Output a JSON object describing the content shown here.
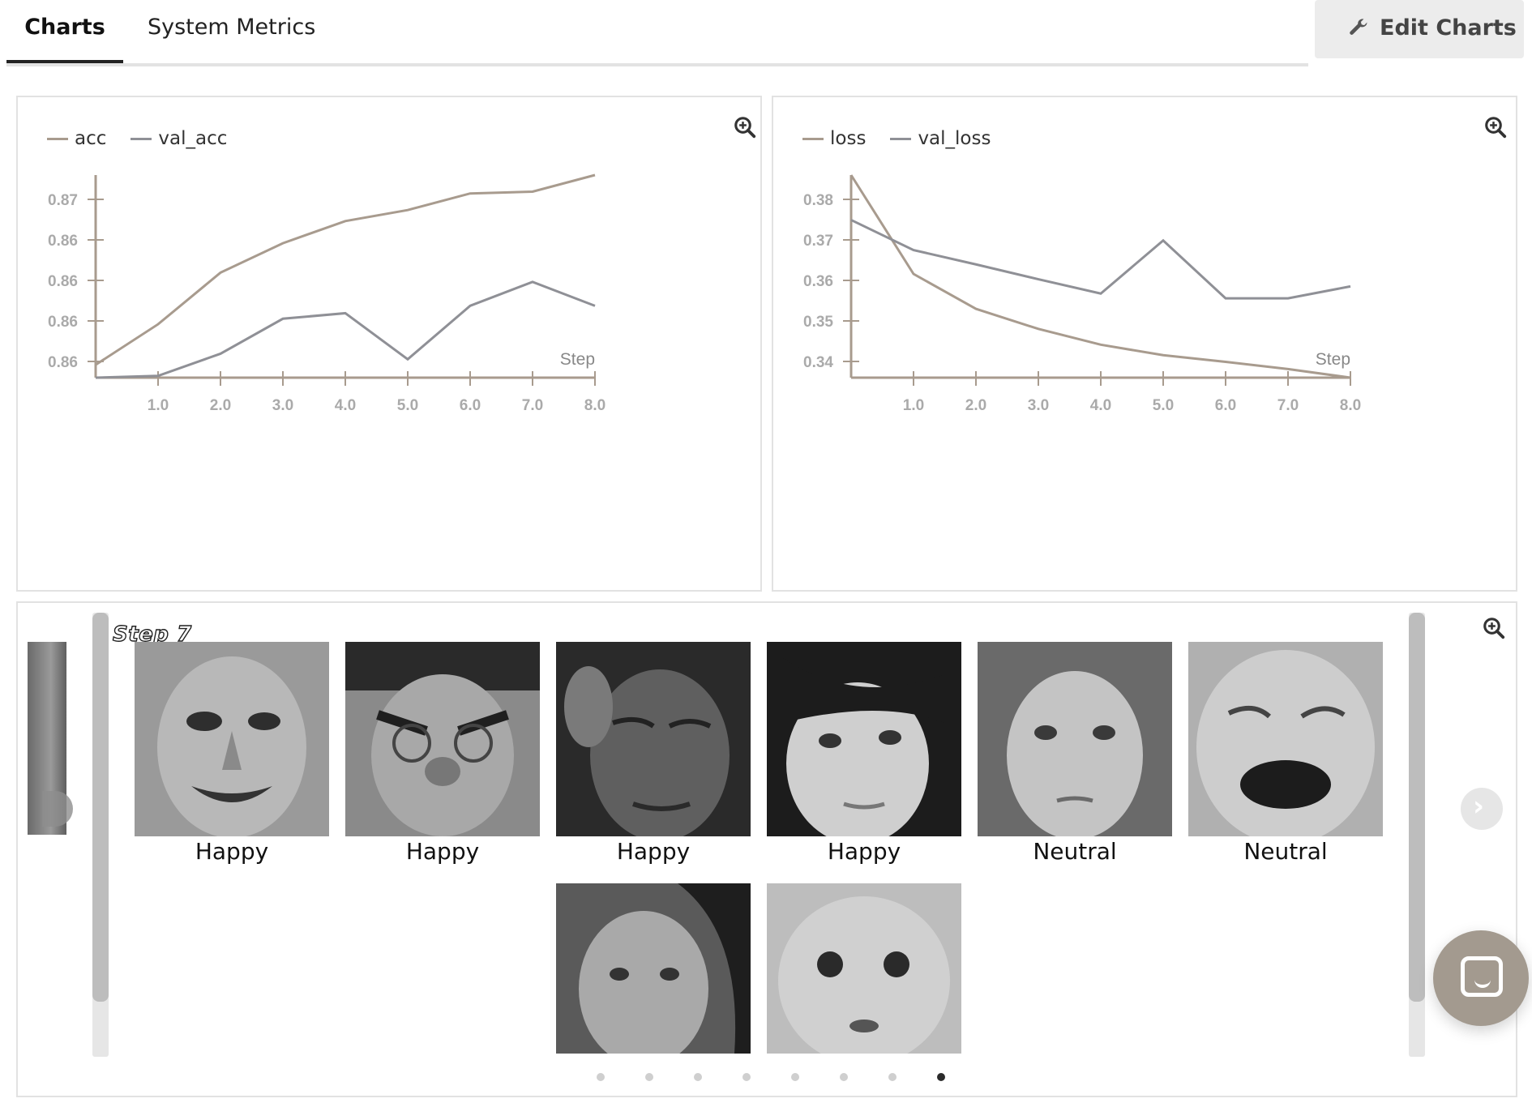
{
  "tabs": [
    {
      "label": "Charts",
      "active": true
    },
    {
      "label": "System Metrics",
      "active": false
    }
  ],
  "edit_button": {
    "label": "Edit Charts",
    "icon": "wrench-icon"
  },
  "colors": {
    "acc": "#a89b8e",
    "val_acc": "#8f9096",
    "loss": "#a89b8e",
    "val_loss": "#8f9096",
    "axis": "#a89b8e",
    "active_dot": "#2b2b2b"
  },
  "chart_data": [
    {
      "type": "line",
      "x": [
        0,
        1,
        2,
        3,
        4,
        5,
        6,
        7,
        8
      ],
      "xlabel": "Step",
      "xticks": [
        "1.0",
        "2.0",
        "3.0",
        "4.0",
        "5.0",
        "6.0",
        "7.0",
        "8.0"
      ],
      "yticks": [
        "0.87",
        "0.86",
        "0.86",
        "0.86",
        "0.86"
      ],
      "series": [
        {
          "name": "acc",
          "values": [
            0.8556,
            0.8578,
            0.8606,
            0.8622,
            0.8634,
            0.864,
            0.8649,
            0.865,
            0.8659
          ]
        },
        {
          "name": "val_acc",
          "values": [
            0.8549,
            0.855,
            0.8562,
            0.8581,
            0.8584,
            0.8559,
            0.8588,
            0.8601,
            0.8588
          ]
        }
      ]
    },
    {
      "type": "line",
      "x": [
        0,
        1,
        2,
        3,
        4,
        5,
        6,
        7,
        8
      ],
      "xlabel": "Step",
      "xticks": [
        "1.0",
        "2.0",
        "3.0",
        "4.0",
        "5.0",
        "6.0",
        "7.0",
        "8.0"
      ],
      "yticks": [
        "0.38",
        "0.37",
        "0.36",
        "0.35",
        "0.34"
      ],
      "series": [
        {
          "name": "loss",
          "values": [
            0.3815,
            0.3608,
            0.3535,
            0.3493,
            0.346,
            0.3438,
            0.3424,
            0.3409,
            0.3391
          ]
        },
        {
          "name": "val_loss",
          "values": [
            0.3721,
            0.3658,
            0.3628,
            0.3597,
            0.3567,
            0.3678,
            0.3557,
            0.3557,
            0.3582
          ]
        }
      ]
    }
  ],
  "image_panel": {
    "step_label": "Step 7",
    "images": [
      {
        "caption": "Happy"
      },
      {
        "caption": "Happy"
      },
      {
        "caption": "Happy"
      },
      {
        "caption": "Happy"
      },
      {
        "caption": "Neutral"
      },
      {
        "caption": "Neutral"
      },
      {
        "caption": ""
      },
      {
        "caption": ""
      }
    ],
    "page_count": 8,
    "active_page": 8
  }
}
